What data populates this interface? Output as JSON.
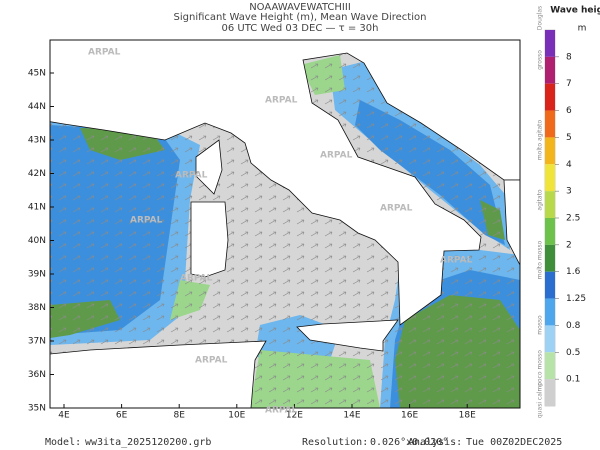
{
  "header": {
    "line1": "NOAAWAVEWATCHIII",
    "line2": "Significant Wave Height (m), Mean Wave Direction",
    "line3": "06 UTC Wed 03 DEC  —  τ = 30h"
  },
  "map": {
    "lat_labels": [
      "45N",
      "44N",
      "43N",
      "42N",
      "41N",
      "40N",
      "39N",
      "38N",
      "37N",
      "36N",
      "35N"
    ],
    "lon_labels": [
      "4E",
      "6E",
      "8E",
      "10E",
      "12E",
      "14E",
      "16E",
      "18E"
    ],
    "watermark": "ARPAL"
  },
  "colorbar": {
    "title": "Wave height",
    "unit": "m",
    "ticks": [
      "8",
      "7",
      "6",
      "5",
      "4",
      "3",
      "2.5",
      "2",
      "1.6",
      "1.25",
      "0.8",
      "0.5",
      "0.1"
    ],
    "classes": [
      "Douglas",
      "grosso",
      "molto agitato",
      "agitato",
      "molto mosso",
      "mosso",
      "poco mosso",
      "quasi calmo"
    ]
  },
  "footer": {
    "model_label": "Model:",
    "model": "ww3ita_2025120200.grb",
    "resolution_label": "Resolution:",
    "resolution": "0.026°x0.020°",
    "analysis_label": "Analysis:",
    "analysis": "Tue 00Z02DEC2025"
  }
}
